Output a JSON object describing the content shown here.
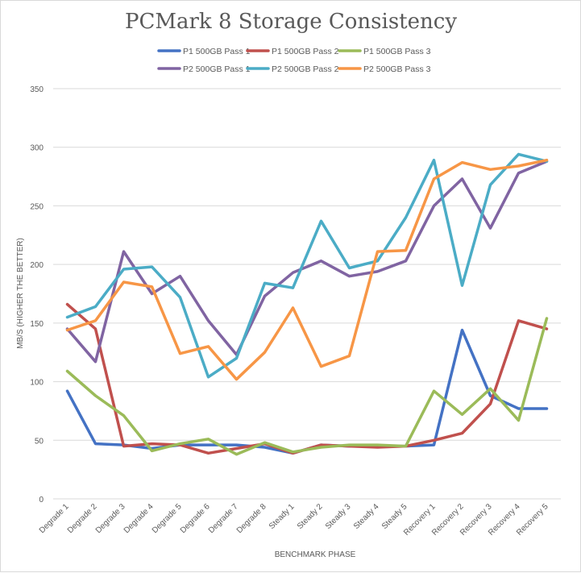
{
  "chart_data": {
    "type": "line",
    "title": "PCMark 8 Storage Consistency",
    "xlabel": "BENCHMARK PHASE",
    "ylabel": "MB/S (HIGHER THE BETTER)",
    "ylim": [
      0,
      350
    ],
    "yticks": [
      0,
      50,
      100,
      150,
      200,
      250,
      300,
      350
    ],
    "grid": true,
    "legend": "top",
    "categories": [
      "Degrade 1",
      "Degrade 2",
      "Degrade 3",
      "Degrade 4",
      "Degrade 5",
      "Degrade 6",
      "Degrade 7",
      "Degrade 8",
      "Steady 1",
      "Steady 2",
      "Steady 3",
      "Steady 4",
      "Steady 5",
      "Recovery 1",
      "Recovery 2",
      "Recovery 3",
      "Recovery 4",
      "Recovery 5"
    ],
    "series": [
      {
        "name": "P1 500GB Pass 1",
        "color": "#4472c4",
        "values": [
          92,
          47,
          46,
          43,
          46,
          46,
          46,
          44,
          39,
          46,
          45,
          45,
          45,
          46,
          144,
          88,
          77,
          77
        ]
      },
      {
        "name": "P1 500GB Pass 2",
        "color": "#c0504d",
        "values": [
          166,
          145,
          45,
          47,
          46,
          39,
          43,
          47,
          39,
          46,
          45,
          44,
          45,
          50,
          56,
          81,
          152,
          145
        ]
      },
      {
        "name": "P1 500GB Pass 3",
        "color": "#9bbb59",
        "values": [
          109,
          88,
          71,
          41,
          47,
          51,
          38,
          48,
          40,
          44,
          46,
          46,
          45,
          92,
          72,
          94,
          67,
          154
        ]
      },
      {
        "name": "P2 500GB Pass 1",
        "color": "#8064a2",
        "values": [
          145,
          117,
          211,
          175,
          190,
          152,
          123,
          173,
          193,
          203,
          190,
          194,
          203,
          250,
          273,
          231,
          278,
          288
        ]
      },
      {
        "name": "P2 500GB Pass 2",
        "color": "#4bacc6",
        "values": [
          155,
          164,
          196,
          198,
          172,
          104,
          120,
          184,
          180,
          237,
          197,
          203,
          240,
          289,
          182,
          268,
          294,
          288
        ]
      },
      {
        "name": "P2 500GB Pass 3",
        "color": "#f79646",
        "values": [
          144,
          152,
          185,
          181,
          124,
          130,
          102,
          125,
          163,
          113,
          122,
          211,
          212,
          273,
          287,
          281,
          284,
          289
        ]
      }
    ]
  }
}
